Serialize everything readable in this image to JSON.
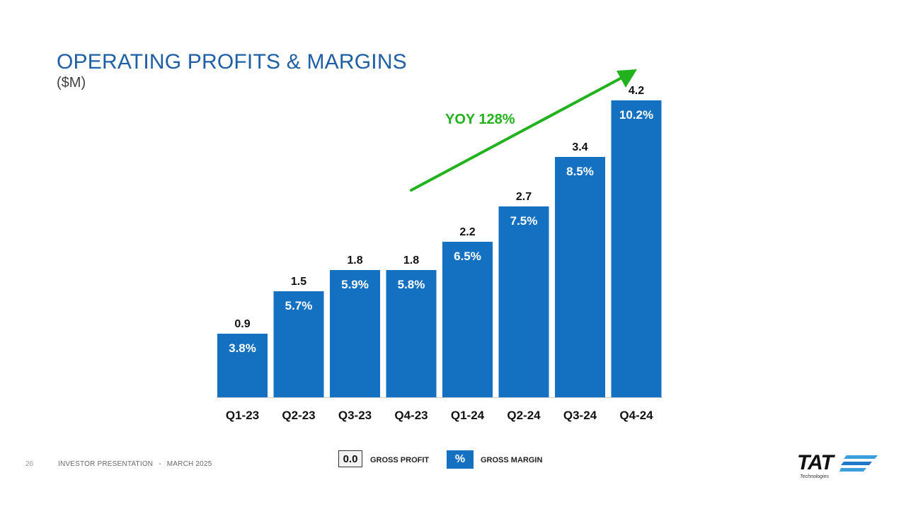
{
  "header": {
    "title": "OPERATING PROFITS & MARGINS",
    "subtitle": "($M)"
  },
  "chart_data": {
    "type": "bar",
    "categories": [
      "Q1-23",
      "Q2-23",
      "Q3-23",
      "Q4-23",
      "Q1-24",
      "Q2-24",
      "Q3-24",
      "Q4-24"
    ],
    "series": [
      {
        "name": "GROSS PROFIT",
        "values": [
          0.9,
          1.5,
          1.8,
          1.8,
          2.2,
          2.7,
          3.4,
          4.2
        ]
      },
      {
        "name": "GROSS MARGIN",
        "values": [
          3.8,
          5.7,
          5.9,
          5.8,
          6.5,
          7.5,
          8.5,
          10.2
        ]
      }
    ],
    "value_labels": [
      "0.9",
      "1.5",
      "1.8",
      "1.8",
      "2.2",
      "2.7",
      "3.4",
      "4.2"
    ],
    "margin_labels": [
      "3.8%",
      "5.7%",
      "5.9%",
      "5.8%",
      "6.5%",
      "7.5%",
      "8.5%",
      "10.2%"
    ],
    "annotation": "YOY 128%",
    "bar_color": "#1470c0",
    "annotation_color": "#22b21e",
    "grid": false
  },
  "legend": {
    "profit_box": "0.0",
    "profit_label": "GROSS PROFIT",
    "margin_box": "%",
    "margin_label": "GROSS MARGIN"
  },
  "footer": {
    "page_number": "26",
    "presentation": "INVESTOR PRESENTATION",
    "separator": "-",
    "date": "MARCH 2025"
  },
  "logo": {
    "name": "TAT",
    "tagline": "Technologies"
  }
}
